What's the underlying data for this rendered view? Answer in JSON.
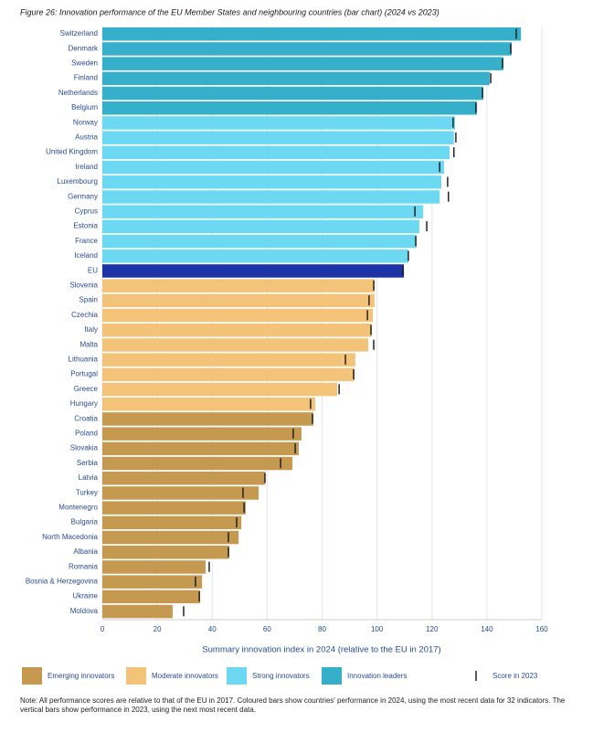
{
  "chart_data": {
    "type": "bar",
    "title": "Figure 26: Innovation performance of the EU Member States and neighbouring countries (bar chart) (2024 vs 2023)",
    "x_label": "Summary innovation index in 2024 (relative to the EU in 2017)",
    "categories": [
      "Switzerland",
      "Denmark",
      "Sweden",
      "Finland",
      "Netherlands",
      "Belgium",
      "Norway",
      "Austria",
      "United Kingdom",
      "Ireland",
      "Luxembourg",
      "Germany",
      "Cyprus",
      "Estonia",
      "France",
      "Iceland",
      "EU",
      "Slovenia",
      "Spain",
      "Czechia",
      "Italy",
      "Malta",
      "Lithuania",
      "Portugal",
      "Greece",
      "Hungary",
      "Croatia",
      "Poland",
      "Slovakia",
      "Serbia",
      "Latvia",
      "Turkey",
      "Montenegro",
      "Bulgaria",
      "North Macedonia",
      "Albania",
      "Romania",
      "Bosnia & Herzegovina",
      "Ukraine",
      "Moldova"
    ],
    "values": [
      152.4,
      149.0,
      146.0,
      141.0,
      138.7,
      136.4,
      128.4,
      128.0,
      126.4,
      124.4,
      123.4,
      122.8,
      116.8,
      115.4,
      114.4,
      111.4,
      109.8,
      99.1,
      99.1,
      98.5,
      98.1,
      96.8,
      92.1,
      91.8,
      85.5,
      77.5,
      76.8,
      72.5,
      71.5,
      69.2,
      59.2,
      56.9,
      52.2,
      50.6,
      49.6,
      46.2,
      37.6,
      36.3,
      35.6,
      25.6
    ],
    "values_2023": [
      150.7,
      148.7,
      145.7,
      141.4,
      138.4,
      136.0,
      127.7,
      128.7,
      128.0,
      122.8,
      125.7,
      126.0,
      113.8,
      118.1,
      114.1,
      111.4,
      109.4,
      98.8,
      97.1,
      96.5,
      97.8,
      98.8,
      88.5,
      91.5,
      86.2,
      75.8,
      76.5,
      69.5,
      70.2,
      64.9,
      59.2,
      51.2,
      51.6,
      48.9,
      45.9,
      45.9,
      38.9,
      33.9,
      35.3,
      29.6
    ],
    "colors": [
      "#35afca",
      "#35afca",
      "#35afca",
      "#35afca",
      "#35afca",
      "#35afca",
      "#6dd8f2",
      "#6dd8f2",
      "#6dd8f2",
      "#6dd8f2",
      "#6dd8f2",
      "#6dd8f2",
      "#6dd8f2",
      "#6dd8f2",
      "#6dd8f2",
      "#6dd8f2",
      "#1c34a6",
      "#f4c37a",
      "#f4c37a",
      "#f4c37a",
      "#f4c37a",
      "#f4c37a",
      "#f4c37a",
      "#f4c37a",
      "#f4c37a",
      "#f4c37a",
      "#c59a50",
      "#c59a50",
      "#c59a50",
      "#c59a50",
      "#c59a50",
      "#c59a50",
      "#c59a50",
      "#c59a50",
      "#c59a50",
      "#c59a50",
      "#c59a50",
      "#c59a50",
      "#c59a50",
      "#c59a50"
    ],
    "marker_color": "#222222",
    "legend": [
      {
        "name": "Emerging innovators",
        "color": "#c59a50"
      },
      {
        "name": "Moderate innovators",
        "color": "#f4c37a"
      },
      {
        "name": "Strong innovators",
        "color": "#6dd8f2"
      },
      {
        "name": "Innovation leaders",
        "color": "#35afca"
      }
    ],
    "marker_legend": "Score in 2023",
    "xlim": [
      0,
      160
    ],
    "xticks": [
      0,
      20,
      40,
      60,
      80,
      100,
      120,
      140,
      160
    ],
    "grid": true,
    "note": "Note: All performance scores are relative to that of the EU in 2017. Coloured bars show countries' performance in 2024, using the most recent data for 32 indicators. The vertical bars show performance in 2023, using the next most recent data."
  }
}
